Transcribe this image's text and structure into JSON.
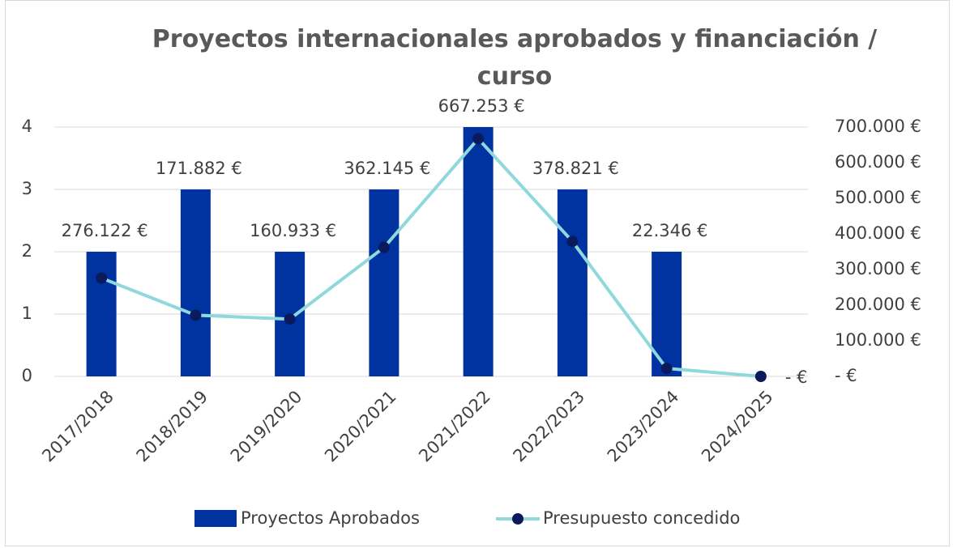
{
  "chart_data": {
    "type": "bar-line",
    "title": "Proyectos internacionales aprobados y financiación / curso",
    "categories": [
      "2017/2018",
      "2018/2019",
      "2019/2020",
      "2020/2021",
      "2021/2022",
      "2022/2023",
      "2023/2024",
      "2024/2025"
    ],
    "series": [
      {
        "name": "Proyectos Aprobados",
        "type": "bar",
        "color": "#0033a0",
        "values": [
          2,
          3,
          2,
          3,
          4,
          3,
          2,
          0
        ]
      },
      {
        "name": "Presupuesto concedido",
        "type": "line",
        "axis": "y2",
        "color": "#8fd8dc",
        "marker_color": "#0a1a5c",
        "values": [
          276122,
          171882,
          160933,
          362145,
          667253,
          378821,
          22346,
          0
        ],
        "value_labels": [
          "276.122 €",
          "171.882 €",
          "160.933 €",
          "362.145 €",
          "667.253 €",
          "378.821 €",
          "22.346 €",
          "-   €"
        ]
      }
    ],
    "ylim": [
      0,
      4
    ],
    "yticks": [
      0,
      1,
      2,
      3,
      4
    ],
    "y2lim": [
      0,
      700000
    ],
    "y2ticks": [
      {
        "value": 0,
        "label": "-   €"
      },
      {
        "value": 100000,
        "label": "100.000 €"
      },
      {
        "value": 200000,
        "label": "200.000 €"
      },
      {
        "value": 300000,
        "label": "300.000 €"
      },
      {
        "value": 400000,
        "label": "400.000 €"
      },
      {
        "value": 500000,
        "label": "500.000 €"
      },
      {
        "value": 600000,
        "label": "600.000 €"
      },
      {
        "value": 700000,
        "label": "700.000 €"
      }
    ],
    "grid": true,
    "legend": "bottom"
  }
}
